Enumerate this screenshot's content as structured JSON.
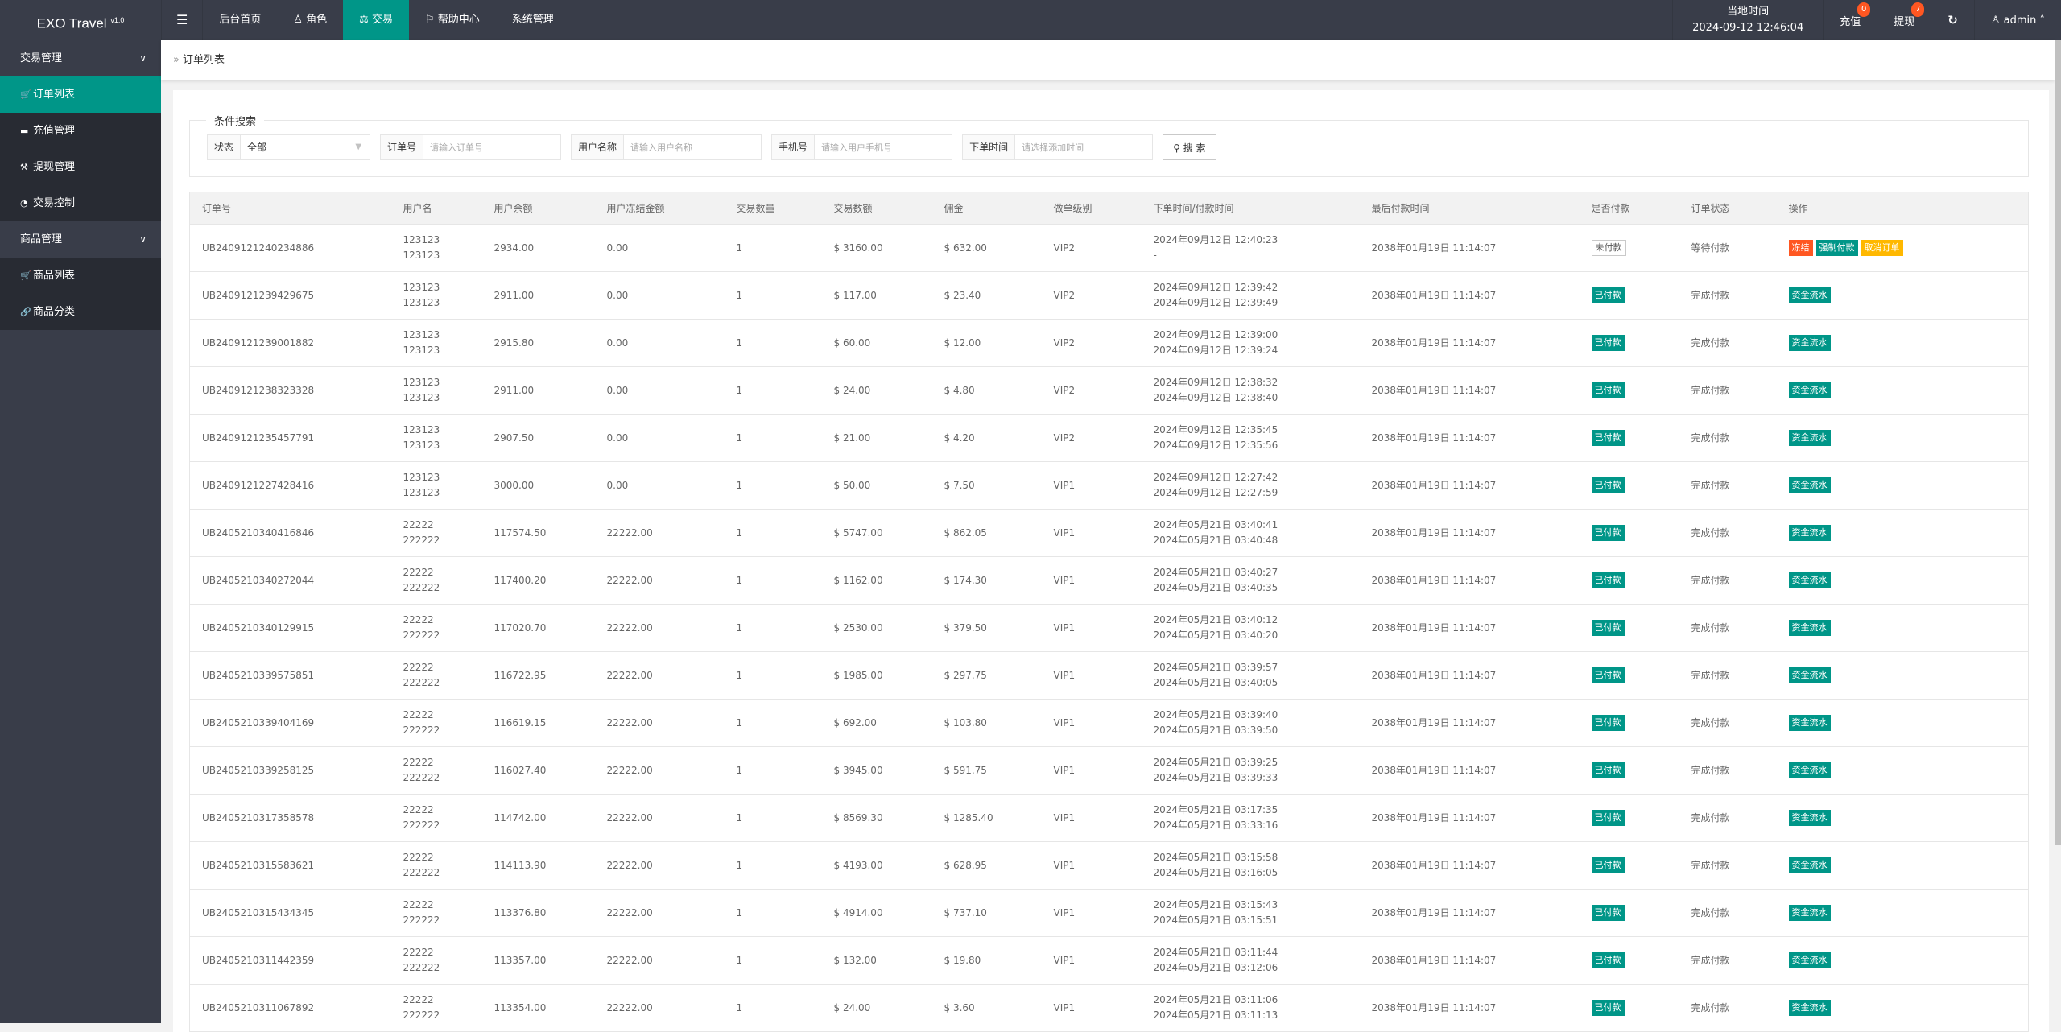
{
  "app": {
    "name": "EXO Travel",
    "version": "v1.0"
  },
  "nav": {
    "menu_icon": "hamburger-icon",
    "items": [
      {
        "label": "后台首页",
        "icon": ""
      },
      {
        "label": "角色",
        "icon": "user-icon"
      },
      {
        "label": "交易",
        "icon": "scale-icon",
        "active": true
      },
      {
        "label": "帮助中心",
        "icon": "flag-icon"
      },
      {
        "label": "系统管理",
        "icon": ""
      }
    ]
  },
  "header_right": {
    "clock_label": "当地时间",
    "clock_value": "2024-09-12 12:46:04",
    "recharge": "充值",
    "recharge_count": "0",
    "withdraw": "提现",
    "withdraw_count": "7",
    "user": "admin"
  },
  "sidebar": {
    "groups": [
      {
        "label": "交易管理",
        "items": [
          {
            "label": "订单列表",
            "icon": "cart-icon",
            "active": true
          },
          {
            "label": "充值管理",
            "icon": "chat-icon"
          },
          {
            "label": "提现管理",
            "icon": "hammer-icon"
          },
          {
            "label": "交易控制",
            "icon": "gauge-icon"
          }
        ]
      },
      {
        "label": "商品管理",
        "items": [
          {
            "label": "商品列表",
            "icon": "cart-icon"
          },
          {
            "label": "商品分类",
            "icon": "link-icon"
          }
        ]
      }
    ]
  },
  "breadcrumb": {
    "current": "订单列表"
  },
  "search": {
    "legend": "条件搜索",
    "status_label": "状态",
    "status_value": "全部",
    "order_label": "订单号",
    "order_placeholder": "请输入订单号",
    "username_label": "用户名称",
    "username_placeholder": "请输入用户名称",
    "phone_label": "手机号",
    "phone_placeholder": "请输入用户手机号",
    "time_label": "下单时间",
    "time_placeholder": "请选择添加时间",
    "button": "搜 索"
  },
  "colors": {
    "accent": "#009688",
    "danger": "#FF5722",
    "warning": "#FFB800",
    "header": "#393D49"
  },
  "table": {
    "columns": [
      "订单号",
      "用户名",
      "用户余额",
      "用户冻结金额",
      "交易数量",
      "交易数额",
      "佣金",
      "做单级别",
      "下单时间/付款时间",
      "最后付款时间",
      "是否付款",
      "订单状态",
      "操作"
    ],
    "rows": [
      {
        "id": "UB2409121240234886",
        "user1": "123123",
        "user2": "123123",
        "balance": "2934.00",
        "frozen": "0.00",
        "qty": "1",
        "amount": "$ 3160.00",
        "commission": "$ 632.00",
        "level": "VIP2",
        "t1": "2024年09月12日 12:40:23",
        "t2": "-",
        "last": "2038年01月19日 11:14:07",
        "paid": "未付款",
        "paid_state": false,
        "status": "等待付款",
        "actions": [
          {
            "label": "冻结",
            "color": "#FF5722"
          },
          {
            "label": "强制付款",
            "color": "#009688"
          },
          {
            "label": "取消订单",
            "color": "#FFB800"
          }
        ]
      },
      {
        "id": "UB2409121239429675",
        "user1": "123123",
        "user2": "123123",
        "balance": "2911.00",
        "frozen": "0.00",
        "qty": "1",
        "amount": "$ 117.00",
        "commission": "$ 23.40",
        "level": "VIP2",
        "t1": "2024年09月12日 12:39:42",
        "t2": "2024年09月12日 12:39:49",
        "last": "2038年01月19日 11:14:07",
        "paid": "已付款",
        "paid_state": true,
        "status": "完成付款",
        "actions": [
          {
            "label": "资金流水",
            "color": "#009688"
          }
        ]
      },
      {
        "id": "UB2409121239001882",
        "user1": "123123",
        "user2": "123123",
        "balance": "2915.80",
        "frozen": "0.00",
        "qty": "1",
        "amount": "$ 60.00",
        "commission": "$ 12.00",
        "level": "VIP2",
        "t1": "2024年09月12日 12:39:00",
        "t2": "2024年09月12日 12:39:24",
        "last": "2038年01月19日 11:14:07",
        "paid": "已付款",
        "paid_state": true,
        "status": "完成付款",
        "actions": [
          {
            "label": "资金流水",
            "color": "#009688"
          }
        ]
      },
      {
        "id": "UB2409121238323328",
        "user1": "123123",
        "user2": "123123",
        "balance": "2911.00",
        "frozen": "0.00",
        "qty": "1",
        "amount": "$ 24.00",
        "commission": "$ 4.80",
        "level": "VIP2",
        "t1": "2024年09月12日 12:38:32",
        "t2": "2024年09月12日 12:38:40",
        "last": "2038年01月19日 11:14:07",
        "paid": "已付款",
        "paid_state": true,
        "status": "完成付款",
        "actions": [
          {
            "label": "资金流水",
            "color": "#009688"
          }
        ]
      },
      {
        "id": "UB2409121235457791",
        "user1": "123123",
        "user2": "123123",
        "balance": "2907.50",
        "frozen": "0.00",
        "qty": "1",
        "amount": "$ 21.00",
        "commission": "$ 4.20",
        "level": "VIP2",
        "t1": "2024年09月12日 12:35:45",
        "t2": "2024年09月12日 12:35:56",
        "last": "2038年01月19日 11:14:07",
        "paid": "已付款",
        "paid_state": true,
        "status": "完成付款",
        "actions": [
          {
            "label": "资金流水",
            "color": "#009688"
          }
        ]
      },
      {
        "id": "UB2409121227428416",
        "user1": "123123",
        "user2": "123123",
        "balance": "3000.00",
        "frozen": "0.00",
        "qty": "1",
        "amount": "$ 50.00",
        "commission": "$ 7.50",
        "level": "VIP1",
        "t1": "2024年09月12日 12:27:42",
        "t2": "2024年09月12日 12:27:59",
        "last": "2038年01月19日 11:14:07",
        "paid": "已付款",
        "paid_state": true,
        "status": "完成付款",
        "actions": [
          {
            "label": "资金流水",
            "color": "#009688"
          }
        ]
      },
      {
        "id": "UB2405210340416846",
        "user1": "22222",
        "user2": "222222",
        "balance": "117574.50",
        "frozen": "22222.00",
        "qty": "1",
        "amount": "$ 5747.00",
        "commission": "$ 862.05",
        "level": "VIP1",
        "t1": "2024年05月21日 03:40:41",
        "t2": "2024年05月21日 03:40:48",
        "last": "2038年01月19日 11:14:07",
        "paid": "已付款",
        "paid_state": true,
        "status": "完成付款",
        "actions": [
          {
            "label": "资金流水",
            "color": "#009688"
          }
        ]
      },
      {
        "id": "UB2405210340272044",
        "user1": "22222",
        "user2": "222222",
        "balance": "117400.20",
        "frozen": "22222.00",
        "qty": "1",
        "amount": "$ 1162.00",
        "commission": "$ 174.30",
        "level": "VIP1",
        "t1": "2024年05月21日 03:40:27",
        "t2": "2024年05月21日 03:40:35",
        "last": "2038年01月19日 11:14:07",
        "paid": "已付款",
        "paid_state": true,
        "status": "完成付款",
        "actions": [
          {
            "label": "资金流水",
            "color": "#009688"
          }
        ]
      },
      {
        "id": "UB2405210340129915",
        "user1": "22222",
        "user2": "222222",
        "balance": "117020.70",
        "frozen": "22222.00",
        "qty": "1",
        "amount": "$ 2530.00",
        "commission": "$ 379.50",
        "level": "VIP1",
        "t1": "2024年05月21日 03:40:12",
        "t2": "2024年05月21日 03:40:20",
        "last": "2038年01月19日 11:14:07",
        "paid": "已付款",
        "paid_state": true,
        "status": "完成付款",
        "actions": [
          {
            "label": "资金流水",
            "color": "#009688"
          }
        ]
      },
      {
        "id": "UB2405210339575851",
        "user1": "22222",
        "user2": "222222",
        "balance": "116722.95",
        "frozen": "22222.00",
        "qty": "1",
        "amount": "$ 1985.00",
        "commission": "$ 297.75",
        "level": "VIP1",
        "t1": "2024年05月21日 03:39:57",
        "t2": "2024年05月21日 03:40:05",
        "last": "2038年01月19日 11:14:07",
        "paid": "已付款",
        "paid_state": true,
        "status": "完成付款",
        "actions": [
          {
            "label": "资金流水",
            "color": "#009688"
          }
        ]
      },
      {
        "id": "UB2405210339404169",
        "user1": "22222",
        "user2": "222222",
        "balance": "116619.15",
        "frozen": "22222.00",
        "qty": "1",
        "amount": "$ 692.00",
        "commission": "$ 103.80",
        "level": "VIP1",
        "t1": "2024年05月21日 03:39:40",
        "t2": "2024年05月21日 03:39:50",
        "last": "2038年01月19日 11:14:07",
        "paid": "已付款",
        "paid_state": true,
        "status": "完成付款",
        "actions": [
          {
            "label": "资金流水",
            "color": "#009688"
          }
        ]
      },
      {
        "id": "UB2405210339258125",
        "user1": "22222",
        "user2": "222222",
        "balance": "116027.40",
        "frozen": "22222.00",
        "qty": "1",
        "amount": "$ 3945.00",
        "commission": "$ 591.75",
        "level": "VIP1",
        "t1": "2024年05月21日 03:39:25",
        "t2": "2024年05月21日 03:39:33",
        "last": "2038年01月19日 11:14:07",
        "paid": "已付款",
        "paid_state": true,
        "status": "完成付款",
        "actions": [
          {
            "label": "资金流水",
            "color": "#009688"
          }
        ]
      },
      {
        "id": "UB2405210317358578",
        "user1": "22222",
        "user2": "222222",
        "balance": "114742.00",
        "frozen": "22222.00",
        "qty": "1",
        "amount": "$ 8569.30",
        "commission": "$ 1285.40",
        "level": "VIP1",
        "t1": "2024年05月21日 03:17:35",
        "t2": "2024年05月21日 03:33:16",
        "last": "2038年01月19日 11:14:07",
        "paid": "已付款",
        "paid_state": true,
        "status": "完成付款",
        "actions": [
          {
            "label": "资金流水",
            "color": "#009688"
          }
        ]
      },
      {
        "id": "UB2405210315583621",
        "user1": "22222",
        "user2": "222222",
        "balance": "114113.90",
        "frozen": "22222.00",
        "qty": "1",
        "amount": "$ 4193.00",
        "commission": "$ 628.95",
        "level": "VIP1",
        "t1": "2024年05月21日 03:15:58",
        "t2": "2024年05月21日 03:16:05",
        "last": "2038年01月19日 11:14:07",
        "paid": "已付款",
        "paid_state": true,
        "status": "完成付款",
        "actions": [
          {
            "label": "资金流水",
            "color": "#009688"
          }
        ]
      },
      {
        "id": "UB2405210315434345",
        "user1": "22222",
        "user2": "222222",
        "balance": "113376.80",
        "frozen": "22222.00",
        "qty": "1",
        "amount": "$ 4914.00",
        "commission": "$ 737.10",
        "level": "VIP1",
        "t1": "2024年05月21日 03:15:43",
        "t2": "2024年05月21日 03:15:51",
        "last": "2038年01月19日 11:14:07",
        "paid": "已付款",
        "paid_state": true,
        "status": "完成付款",
        "actions": [
          {
            "label": "资金流水",
            "color": "#009688"
          }
        ]
      },
      {
        "id": "UB2405210311442359",
        "user1": "22222",
        "user2": "222222",
        "balance": "113357.00",
        "frozen": "22222.00",
        "qty": "1",
        "amount": "$ 132.00",
        "commission": "$ 19.80",
        "level": "VIP1",
        "t1": "2024年05月21日 03:11:44",
        "t2": "2024年05月21日 03:12:06",
        "last": "2038年01月19日 11:14:07",
        "paid": "已付款",
        "paid_state": true,
        "status": "完成付款",
        "actions": [
          {
            "label": "资金流水",
            "color": "#009688"
          }
        ]
      },
      {
        "id": "UB2405210311067892",
        "user1": "22222",
        "user2": "222222",
        "balance": "113354.00",
        "frozen": "22222.00",
        "qty": "1",
        "amount": "$ 24.00",
        "commission": "$ 3.60",
        "level": "VIP1",
        "t1": "2024年05月21日 03:11:06",
        "t2": "2024年05月21日 03:11:13",
        "last": "2038年01月19日 11:14:07",
        "paid": "已付款",
        "paid_state": true,
        "status": "完成付款",
        "actions": [
          {
            "label": "资金流水",
            "color": "#009688"
          }
        ]
      }
    ]
  }
}
